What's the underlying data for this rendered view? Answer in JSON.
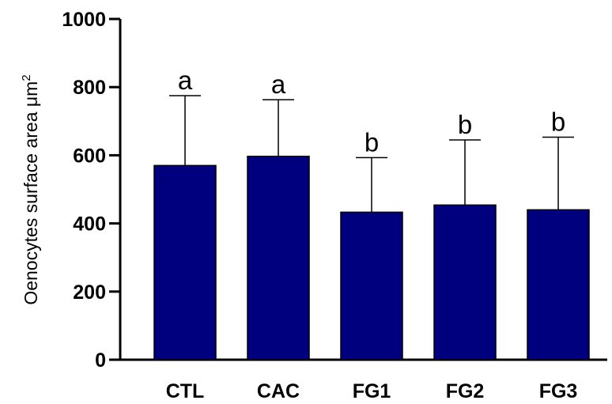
{
  "chart_data": {
    "type": "bar",
    "ylabel": "Oenocytes surface area μm",
    "ylabel_sup": "2",
    "xlabel": "",
    "ylim": [
      0,
      1000
    ],
    "yticks": [
      0,
      200,
      400,
      600,
      800,
      1000
    ],
    "categories": [
      "CTL",
      "CAC",
      "FG1",
      "FG2",
      "FG3"
    ],
    "values": [
      570,
      597,
      433,
      454,
      440
    ],
    "error_upper": [
      775,
      763,
      593,
      645,
      653
    ],
    "significance": [
      "a",
      "a",
      "b",
      "b",
      "b"
    ],
    "bar_color": "#00007f",
    "grid": false
  }
}
